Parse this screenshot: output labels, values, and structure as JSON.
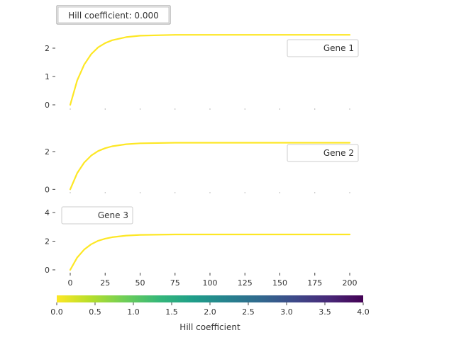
{
  "title_box": {
    "text": "Hill coefficient: 0.000"
  },
  "colorbar": {
    "label": "Hill coefficient",
    "min": 0.0,
    "max": 4.0,
    "ticks": [
      "0.0",
      "0.5",
      "1.0",
      "1.5",
      "2.0",
      "2.5",
      "3.0",
      "3.5",
      "4.0"
    ],
    "colormap": [
      "#fde725",
      "#b5de2b",
      "#6ece58",
      "#35b779",
      "#1f9e89",
      "#26828e",
      "#31688e",
      "#3e4989",
      "#482878",
      "#440154"
    ]
  },
  "chart_data": [
    {
      "type": "line",
      "legend": "Gene 1",
      "legend_position": "top-right",
      "xlim": [
        0,
        200
      ],
      "ylim": [
        -0.1,
        2.6
      ],
      "yticks": [
        0,
        1,
        2
      ],
      "series": [
        {
          "name": "Gene 1",
          "color": "#fde725",
          "x": [
            0,
            5,
            10,
            15,
            20,
            25,
            30,
            40,
            50,
            75,
            100,
            150,
            200
          ],
          "y": [
            0.0,
            0.86,
            1.42,
            1.79,
            2.03,
            2.18,
            2.28,
            2.39,
            2.44,
            2.47,
            2.47,
            2.47,
            2.47
          ]
        }
      ]
    },
    {
      "type": "line",
      "legend": "Gene 2",
      "legend_position": "top-right",
      "xlim": [
        0,
        200
      ],
      "ylim": [
        -0.1,
        3.2
      ],
      "yticks": [
        0,
        2
      ],
      "series": [
        {
          "name": "Gene 2",
          "color": "#fde725",
          "x": [
            0,
            5,
            10,
            15,
            20,
            25,
            30,
            40,
            50,
            75,
            100,
            150,
            200
          ],
          "y": [
            0.0,
            0.86,
            1.42,
            1.79,
            2.03,
            2.18,
            2.28,
            2.39,
            2.44,
            2.47,
            2.47,
            2.47,
            2.47
          ]
        }
      ]
    },
    {
      "type": "line",
      "legend": "Gene 3",
      "legend_position": "top-left",
      "xlim": [
        0,
        200
      ],
      "ylim": [
        -0.2,
        4.5
      ],
      "yticks": [
        0,
        2,
        4
      ],
      "xticks": [
        0,
        25,
        50,
        75,
        100,
        125,
        150,
        175,
        200
      ],
      "series": [
        {
          "name": "Gene 3",
          "color": "#fde725",
          "x": [
            0,
            5,
            10,
            15,
            20,
            25,
            30,
            40,
            50,
            75,
            100,
            150,
            200
          ],
          "y": [
            0.0,
            0.86,
            1.42,
            1.79,
            2.03,
            2.18,
            2.28,
            2.39,
            2.44,
            2.47,
            2.47,
            2.47,
            2.47
          ]
        }
      ]
    }
  ]
}
